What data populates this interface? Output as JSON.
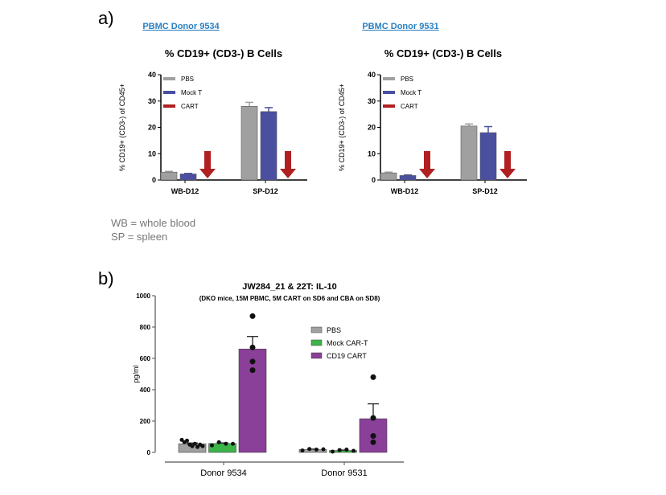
{
  "panel_labels": {
    "a": "a)",
    "b": "b)"
  },
  "notes": [
    "WB = whole blood",
    "SP = spleen"
  ],
  "colors": {
    "PBS": "#a0a0a0",
    "Mock T": "#4a4fa0",
    "CART": "#b02020",
    "Mock CAR-T": "#3bb54a",
    "CD19 CART": "#8a3f98",
    "donor_title": "#2a7fc0"
  },
  "chart_data": [
    {
      "type": "bar",
      "donor_title": "PBMC Donor 9534",
      "title": "% CD19+ (CD3-) B Cells",
      "ylabel": "% CD19+ (CD3-) of CD45+",
      "ylim": [
        0,
        40
      ],
      "yticks": [
        0,
        10,
        20,
        30,
        40
      ],
      "categories": [
        "WB-D12",
        "SP-D12"
      ],
      "legend": "top-left",
      "series": [
        {
          "name": "PBS",
          "values": [
            3.0,
            28.0
          ],
          "errors": [
            0.3,
            1.5
          ]
        },
        {
          "name": "Mock T",
          "values": [
            2.3,
            26.0
          ],
          "errors": [
            0.2,
            1.5
          ]
        },
        {
          "name": "CART",
          "values": [
            null,
            null
          ],
          "marker": "down-arrow"
        }
      ]
    },
    {
      "type": "bar",
      "donor_title": "PBMC Donor 9531",
      "title": "% CD19+ (CD3-) B Cells",
      "ylabel": "% CD19+ (CD3-) of CD45+",
      "ylim": [
        0,
        40
      ],
      "yticks": [
        0,
        10,
        20,
        30,
        40
      ],
      "categories": [
        "WB-D12",
        "SP-D12"
      ],
      "legend": "top-left",
      "series": [
        {
          "name": "PBS",
          "values": [
            2.7,
            20.5
          ],
          "errors": [
            0.3,
            0.8
          ]
        },
        {
          "name": "Mock T",
          "values": [
            1.7,
            18.0
          ],
          "errors": [
            0.2,
            2.3
          ]
        },
        {
          "name": "CART",
          "values": [
            null,
            null
          ],
          "marker": "down-arrow"
        }
      ]
    },
    {
      "type": "bar",
      "title": "JW284_21 & 22T: IL-10",
      "subtitle": "(DKO mice, 15M PBMC, 5M CART on SD6 and CBA on SD8)",
      "ylabel": "pg/ml",
      "ylim": [
        0,
        1000
      ],
      "yticks": [
        0,
        200,
        400,
        600,
        800,
        1000
      ],
      "categories": [
        "Donor 9534",
        "Donor 9531"
      ],
      "legend": "right",
      "series": [
        {
          "name": "PBS",
          "values": [
            55,
            18
          ],
          "errors": [
            5,
            3
          ],
          "points": [
            [
              80,
              65,
              75,
              50,
              40,
              55,
              35,
              50,
              40
            ],
            [
              12,
              22,
              18,
              20
            ]
          ]
        },
        {
          "name": "Mock CAR-T",
          "values": [
            57,
            12
          ],
          "errors": [
            4,
            3
          ],
          "points": [
            [
              45,
              65,
              55,
              55
            ],
            [
              5,
              15,
              18,
              10
            ]
          ]
        },
        {
          "name": "CD19 CART",
          "values": [
            660,
            215
          ],
          "errors": [
            80,
            95
          ],
          "points": [
            [
              870,
              670,
              580,
              525
            ],
            [
              480,
              220,
              105,
              65
            ]
          ]
        }
      ]
    }
  ]
}
